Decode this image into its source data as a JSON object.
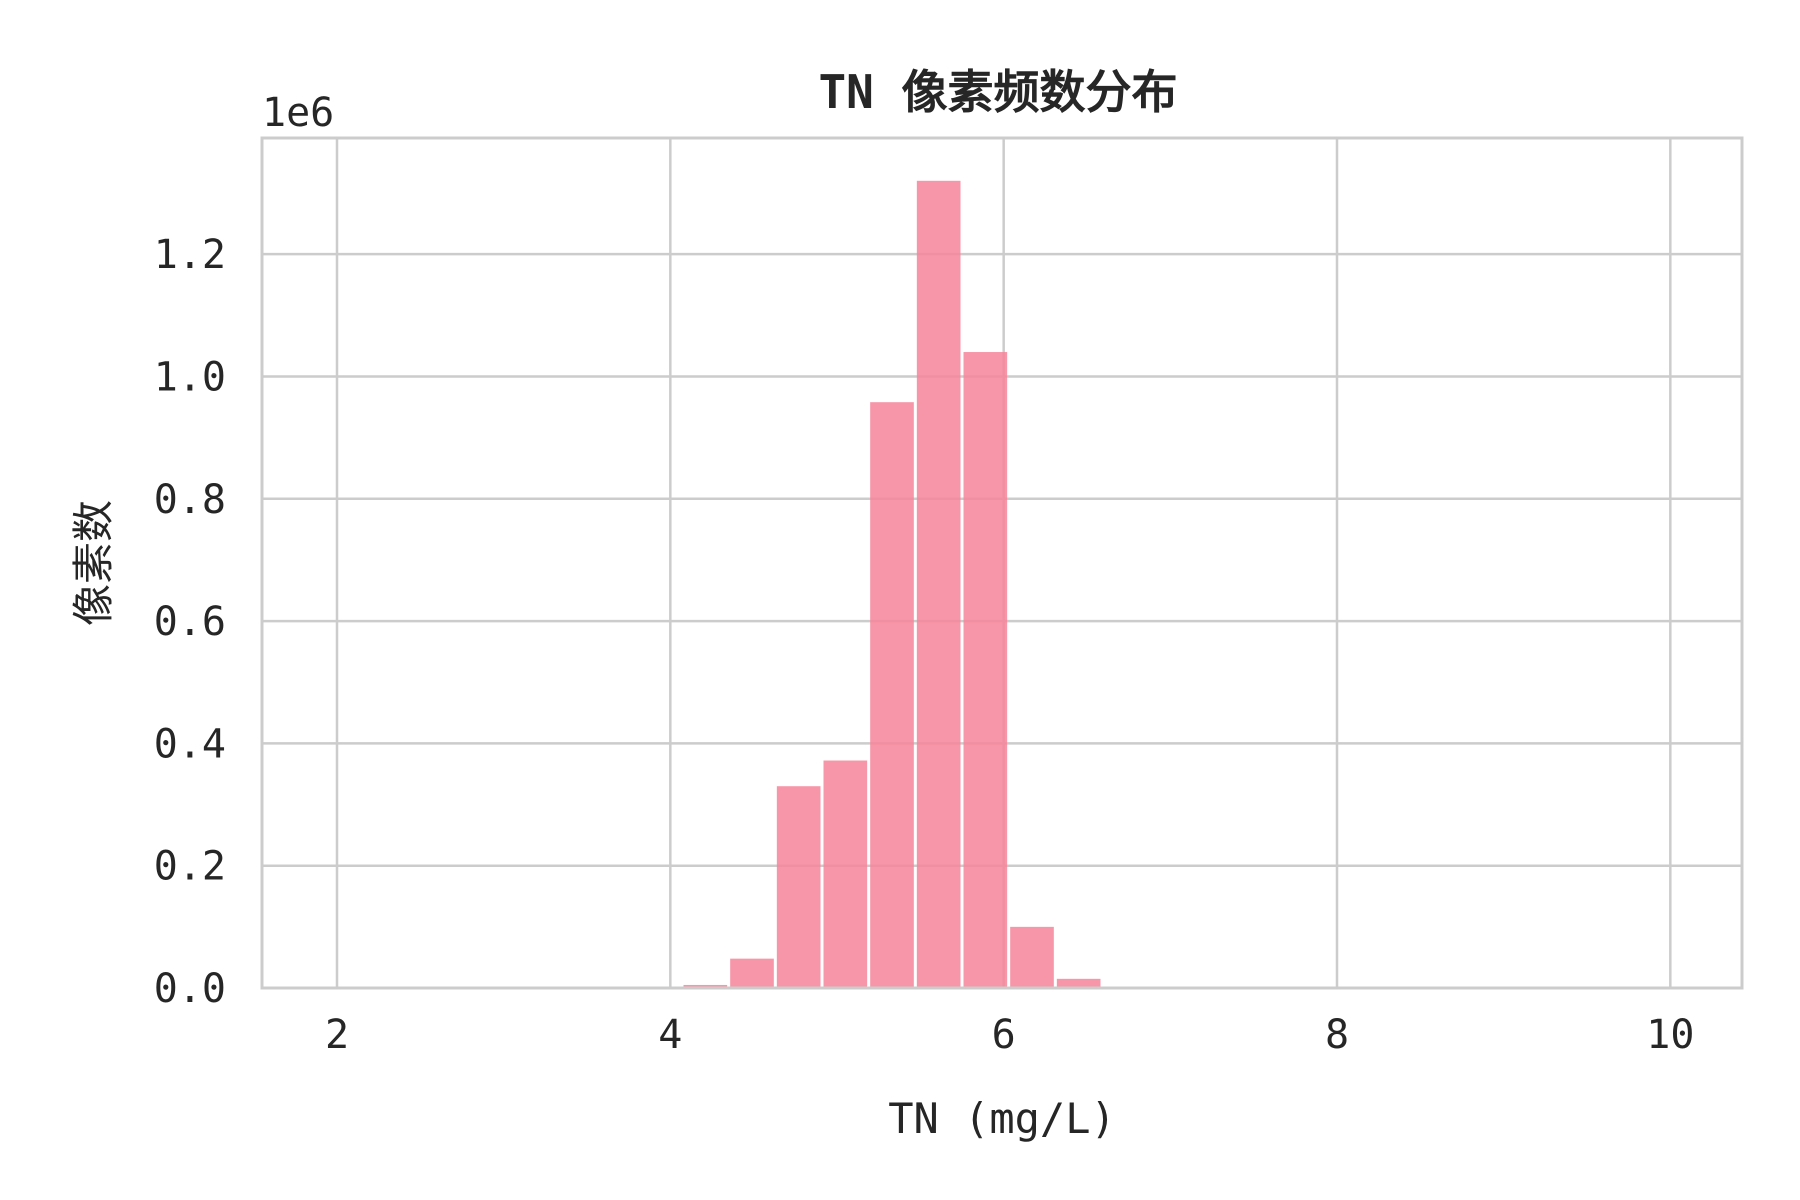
{
  "chart_data": {
    "type": "bar",
    "title": "TN 像素频数分布",
    "xlabel": "TN (mg/L)",
    "ylabel": "像素数",
    "y_offset_label": "1e6",
    "xlim": [
      1.55,
      10.43
    ],
    "ylim": [
      0,
      1.39
    ],
    "x_ticks": [
      2,
      4,
      6,
      8,
      10
    ],
    "y_ticks": [
      0.0,
      0.2,
      0.4,
      0.6,
      0.8,
      1.0,
      1.2
    ],
    "y_tick_labels": [
      "0.0",
      "0.2",
      "0.4",
      "0.6",
      "0.8",
      "1.0",
      "1.2"
    ],
    "grid": true,
    "bar_color": "#f7849a",
    "bins": [
      {
        "x0": 4.07,
        "x1": 4.35,
        "value": 0.005
      },
      {
        "x0": 4.35,
        "x1": 4.63,
        "value": 0.048
      },
      {
        "x0": 4.63,
        "x1": 4.91,
        "value": 0.33
      },
      {
        "x0": 4.91,
        "x1": 5.19,
        "value": 0.372
      },
      {
        "x0": 5.19,
        "x1": 5.47,
        "value": 0.958
      },
      {
        "x0": 5.47,
        "x1": 5.75,
        "value": 1.32
      },
      {
        "x0": 5.75,
        "x1": 6.03,
        "value": 1.04
      },
      {
        "x0": 6.03,
        "x1": 6.31,
        "value": 0.1
      },
      {
        "x0": 6.31,
        "x1": 6.59,
        "value": 0.015
      }
    ]
  }
}
